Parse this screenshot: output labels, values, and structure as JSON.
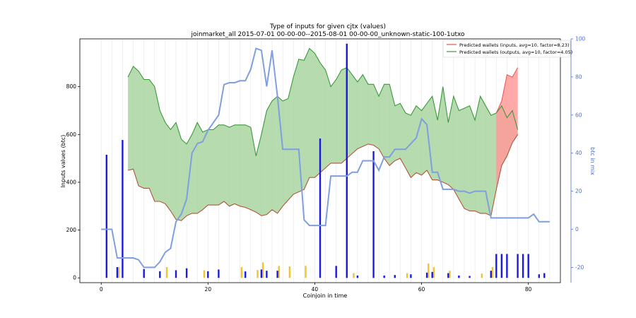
{
  "chart_data": {
    "type": "area",
    "title": "Type of inputs for given cjtx (values)",
    "subtitle": "joinmarket_all 2015-07-01 00-00-00--2015-08-01 00-00-00_unknown-static-100-1utxo",
    "xlabel": "Coinjoin in time",
    "ylabel": "Inputs values (btc)",
    "ylabel_right": "btc in mix",
    "xlim": [
      -4,
      86
    ],
    "ylim": [
      -20,
      1000
    ],
    "ylim_right": [
      -28,
      100
    ],
    "xticks": [
      "0",
      "20",
      "40",
      "60",
      "80"
    ],
    "yticks": [
      "0",
      "200",
      "400",
      "600",
      "800"
    ],
    "yticks_right": [
      "-20",
      "0",
      "20",
      "40",
      "60",
      "80",
      "100"
    ],
    "legend_position": "top-right",
    "legend": [
      {
        "label": "Predicted wallets (inputs, avg=10, factor=8.23)",
        "color": "#e8534a"
      },
      {
        "label": "Predicted wallets (outputs, avg=10, factor=4.05)",
        "color": "#3a9a3a"
      }
    ],
    "colors": {
      "inputs_fill": "#ff9a9a",
      "inputs_line": "#b0553a",
      "outputs_fill": "#a8d5a0",
      "outputs_line": "#3a9a3a",
      "mix_line": "#7f9fe0",
      "bars": "#1a1ae0",
      "bars_secondary": "#f2c230",
      "right_axis": "#5070d0"
    },
    "inputs_series": {
      "x": [
        5,
        6,
        7,
        8,
        9,
        10,
        11,
        12,
        13,
        14,
        15,
        16,
        17,
        18,
        19,
        20,
        21,
        22,
        23,
        24,
        25,
        26,
        27,
        28,
        29,
        30,
        31,
        32,
        33,
        34,
        35,
        36,
        37,
        38,
        39,
        40,
        41,
        42,
        43,
        44,
        45,
        46,
        47,
        48,
        49,
        50,
        51,
        52,
        53,
        54,
        55,
        56,
        57,
        58,
        59,
        60,
        61,
        62,
        63,
        64,
        65,
        66,
        67,
        68,
        69,
        70,
        71,
        72,
        73,
        74,
        75,
        76,
        77,
        78
      ],
      "y": [
        450,
        455,
        385,
        375,
        375,
        320,
        320,
        310,
        280,
        245,
        240,
        260,
        270,
        270,
        285,
        305,
        305,
        305,
        320,
        300,
        310,
        300,
        295,
        285,
        275,
        260,
        265,
        285,
        270,
        300,
        325,
        350,
        360,
        370,
        420,
        420,
        440,
        460,
        480,
        480,
        480,
        500,
        520,
        540,
        550,
        560,
        555,
        540,
        500,
        470,
        490,
        500,
        460,
        420,
        440,
        430,
        450,
        410,
        410,
        400,
        390,
        370,
        330,
        290,
        280,
        280,
        270,
        270,
        260,
        370,
        470,
        510,
        565,
        600
      ]
    },
    "outputs_series": {
      "x": [
        5,
        6,
        7,
        8,
        9,
        10,
        11,
        12,
        13,
        14,
        15,
        16,
        17,
        18,
        19,
        20,
        21,
        22,
        23,
        24,
        25,
        26,
        27,
        28,
        29,
        30,
        31,
        32,
        33,
        34,
        35,
        36,
        37,
        38,
        39,
        40,
        41,
        42,
        43,
        44,
        45,
        46,
        47,
        48,
        49,
        50,
        51,
        52,
        53,
        54,
        55,
        56,
        57,
        58,
        59,
        60,
        61,
        62,
        63,
        64,
        65,
        66,
        67,
        68,
        69,
        70,
        71,
        72,
        73,
        74,
        75,
        76,
        77,
        78
      ],
      "y": [
        840,
        885,
        865,
        830,
        830,
        800,
        700,
        650,
        620,
        650,
        580,
        560,
        600,
        650,
        610,
        620,
        620,
        640,
        640,
        630,
        640,
        640,
        640,
        630,
        510,
        600,
        700,
        740,
        760,
        740,
        750,
        840,
        915,
        910,
        960,
        940,
        900,
        870,
        800,
        830,
        870,
        880,
        850,
        820,
        850,
        810,
        810,
        760,
        810,
        810,
        720,
        730,
        690,
        680,
        720,
        700,
        730,
        760,
        660,
        800,
        650,
        760,
        700,
        710,
        720,
        660,
        760,
        720,
        680,
        690,
        720,
        670,
        700,
        620
      ]
    },
    "inputs_high": {
      "x": [
        74,
        75,
        76,
        77,
        78
      ],
      "y": [
        690,
        740,
        850,
        840,
        880
      ]
    },
    "mix_series": {
      "x": [
        0,
        1,
        2,
        3,
        4,
        5,
        6,
        7,
        8,
        9,
        10,
        11,
        12,
        13,
        14,
        15,
        16,
        17,
        18,
        19,
        20,
        21,
        22,
        23,
        24,
        25,
        26,
        27,
        28,
        29,
        30,
        31,
        32,
        33,
        34,
        35,
        36,
        37,
        38,
        39,
        40,
        41,
        42,
        43,
        44,
        45,
        46,
        47,
        48,
        49,
        50,
        51,
        52,
        53,
        54,
        55,
        56,
        57,
        58,
        59,
        60,
        61,
        62,
        63,
        64,
        65,
        66,
        67,
        68,
        69,
        70,
        71,
        72,
        73,
        74,
        75,
        76,
        77,
        78,
        79,
        80,
        81,
        82,
        83,
        84
      ],
      "y": [
        0,
        0,
        0,
        -15,
        -15,
        -15,
        -15,
        -16,
        -20,
        -20,
        -20,
        -17,
        -12,
        -10,
        4,
        8,
        16,
        40,
        45,
        46,
        52,
        56,
        60,
        76,
        77,
        77,
        78,
        78,
        84,
        95,
        94,
        75,
        94,
        70,
        42,
        42,
        42,
        42,
        5,
        2,
        2,
        2,
        2,
        28,
        28,
        28,
        28,
        30,
        30,
        36,
        36,
        36,
        31,
        38,
        38,
        42,
        42,
        42,
        45,
        48,
        58,
        55,
        30,
        30,
        21,
        21,
        21,
        20,
        20,
        19,
        20,
        20,
        20,
        6,
        6,
        6,
        6,
        6,
        6,
        6,
        6,
        8,
        4,
        4,
        4
      ]
    },
    "bars": {
      "x": [
        1,
        4,
        3,
        8,
        11,
        14,
        16,
        20,
        22,
        27,
        30,
        31,
        33,
        41,
        44,
        46,
        48,
        51,
        53,
        55,
        58,
        61,
        62,
        65,
        67,
        69,
        73,
        74,
        75,
        76,
        78,
        79,
        80,
        82,
        83
      ],
      "y": [
        515,
        577,
        45,
        37,
        28,
        32,
        40,
        28,
        35,
        27,
        35,
        30,
        30,
        583,
        50,
        980,
        10,
        530,
        10,
        12,
        15,
        22,
        25,
        20,
        10,
        8,
        30,
        100,
        100,
        100,
        100,
        100,
        100,
        15,
        20
      ]
    },
    "bars_secondary": {
      "x": [
        3,
        12,
        19,
        26,
        29,
        30,
        33,
        35,
        38,
        47,
        57,
        61,
        62,
        65,
        71,
        73
      ],
      "y": [
        45,
        45,
        32,
        45,
        33,
        65,
        50,
        48,
        50,
        20,
        20,
        60,
        45,
        30,
        18,
        45
      ]
    }
  }
}
